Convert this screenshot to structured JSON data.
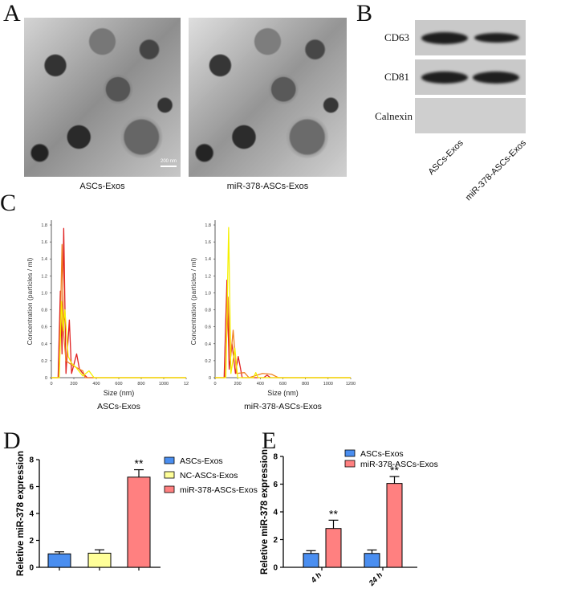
{
  "panels": {
    "A": {
      "label": "A",
      "images": [
        {
          "caption": "ASCs-Exos",
          "scale_bar": "200 nm"
        },
        {
          "caption": "miR-378-ASCs-Exos"
        }
      ]
    },
    "B": {
      "label": "B",
      "rows": [
        "CD63",
        "CD81",
        "Calnexin"
      ],
      "lanes": [
        "ASCs-Exos",
        "miR-378-ASCs-Exos"
      ]
    },
    "C": {
      "label": "C"
    },
    "D": {
      "label": "D"
    },
    "E": {
      "label": "E"
    }
  },
  "colors": {
    "red": "#e02020",
    "orange": "#f08020",
    "yellow": "#f5f000",
    "blue": "#4a8ef0",
    "pale_yellow": "#ffff99",
    "salmon": "#ff8080"
  },
  "chart_data": [
    {
      "id": "C-left",
      "type": "line",
      "caption": "ASCs-Exos",
      "xlabel": "Size (nm)",
      "ylabel": "Concentration (particles / ml)",
      "xlim": [
        0,
        1200
      ],
      "ylim": [
        0,
        1.8
      ],
      "xticks": [
        "0",
        "200",
        "400",
        "600",
        "800",
        "1000",
        "12"
      ],
      "yticks": [
        "0",
        "0.2",
        "0.4",
        "0.6",
        "0.8",
        "1.0",
        "1.2",
        "1.4",
        "1.6",
        "1.8"
      ],
      "series": [
        {
          "color": "#e02020",
          "points": [
            [
              0,
              0
            ],
            [
              60,
              0
            ],
            [
              80,
              1.02
            ],
            [
              95,
              0.28
            ],
            [
              110,
              1.76
            ],
            [
              130,
              0.05
            ],
            [
              160,
              0.68
            ],
            [
              180,
              0.05
            ],
            [
              225,
              0.28
            ],
            [
              250,
              0.1
            ],
            [
              280,
              0.05
            ],
            [
              320,
              0
            ],
            [
              1200,
              0
            ]
          ]
        },
        {
          "color": "#f08020",
          "points": [
            [
              0,
              0
            ],
            [
              70,
              0
            ],
            [
              95,
              1.57
            ],
            [
              110,
              0.5
            ],
            [
              130,
              0.2
            ],
            [
              180,
              0.15
            ],
            [
              280,
              0.08
            ],
            [
              300,
              0
            ],
            [
              1200,
              0
            ]
          ]
        },
        {
          "color": "#f5f000",
          "points": [
            [
              0,
              0
            ],
            [
              70,
              0
            ],
            [
              90,
              0.9
            ],
            [
              105,
              0.55
            ],
            [
              120,
              0.8
            ],
            [
              150,
              0.25
            ],
            [
              180,
              0.17
            ],
            [
              220,
              0.12
            ],
            [
              280,
              0.02
            ],
            [
              335,
              0.08
            ],
            [
              380,
              0
            ],
            [
              1200,
              0
            ]
          ]
        }
      ]
    },
    {
      "id": "C-right",
      "type": "line",
      "caption": "miR-378-ASCs-Exos",
      "xlabel": "Size (nm)",
      "ylabel": "Concentration (particles / ml)",
      "xlim": [
        0,
        1200
      ],
      "ylim": [
        0,
        1.8
      ],
      "xticks": [
        "0",
        "200",
        "400",
        "600",
        "800",
        "1000",
        "1200"
      ],
      "yticks": [
        "0",
        "0.2",
        "0.4",
        "0.6",
        "0.8",
        "1.0",
        "1.2",
        "1.4",
        "1.6",
        "1.8"
      ],
      "series": [
        {
          "color": "#e02020",
          "points": [
            [
              0,
              0
            ],
            [
              80,
              0
            ],
            [
              105,
              1.15
            ],
            [
              125,
              0.1
            ],
            [
              150,
              0.4
            ],
            [
              180,
              0.05
            ],
            [
              205,
              0.25
            ],
            [
              240,
              0
            ],
            [
              430,
              0
            ],
            [
              460,
              0.03
            ],
            [
              490,
              0
            ],
            [
              1200,
              0
            ]
          ]
        },
        {
          "color": "#f08020",
          "points": [
            [
              0,
              0
            ],
            [
              90,
              0
            ],
            [
              115,
              0.95
            ],
            [
              135,
              0.2
            ],
            [
              160,
              0.56
            ],
            [
              190,
              0.05
            ],
            [
              260,
              0.06
            ],
            [
              300,
              0
            ],
            [
              420,
              0.05
            ],
            [
              500,
              0.04
            ],
            [
              560,
              0
            ],
            [
              1200,
              0
            ]
          ]
        },
        {
          "color": "#f5f000",
          "points": [
            [
              0,
              0
            ],
            [
              95,
              0
            ],
            [
              120,
              1.77
            ],
            [
              140,
              0.05
            ],
            [
              175,
              0.35
            ],
            [
              200,
              0
            ],
            [
              340,
              0
            ],
            [
              360,
              0.06
            ],
            [
              380,
              0
            ],
            [
              1200,
              0
            ]
          ]
        }
      ]
    },
    {
      "id": "D",
      "type": "bar",
      "ylabel": "Reletive miR-378 expression",
      "ylim": [
        0,
        8
      ],
      "yticks": [
        "0",
        "2",
        "4",
        "6",
        "8"
      ],
      "categories": [
        "ASCs-Exos",
        "NC-ASCs-Exos",
        "miR-378-ASCs-Exos"
      ],
      "series": [
        {
          "name": "ASCs-Exos",
          "color": "#4a8ef0"
        },
        {
          "name": "NC-ASCs-Exos",
          "color": "#ffff99"
        },
        {
          "name": "miR-378-ASCs-Exos",
          "color": "#ff8080"
        }
      ],
      "values": [
        1.0,
        1.05,
        6.7
      ],
      "errors": [
        0.15,
        0.25,
        0.55
      ],
      "annotations": [
        "",
        "",
        "**"
      ],
      "legend": "right"
    },
    {
      "id": "E",
      "type": "bar",
      "ylabel": "Reletive miR-378 expression",
      "ylim": [
        0,
        8
      ],
      "yticks": [
        "0",
        "2",
        "4",
        "6",
        "8"
      ],
      "categories": [
        "4 h",
        "24 h"
      ],
      "series": [
        {
          "name": "ASCs-Exos",
          "color": "#4a8ef0",
          "values": [
            1.0,
            1.0
          ],
          "errors": [
            0.2,
            0.25
          ],
          "annotations": [
            "",
            ""
          ]
        },
        {
          "name": "miR-378-ASCs-Exos",
          "color": "#ff8080",
          "values": [
            2.8,
            6.05
          ],
          "errors": [
            0.6,
            0.5
          ],
          "annotations": [
            "**",
            "**"
          ]
        }
      ],
      "legend": "top-right"
    }
  ]
}
